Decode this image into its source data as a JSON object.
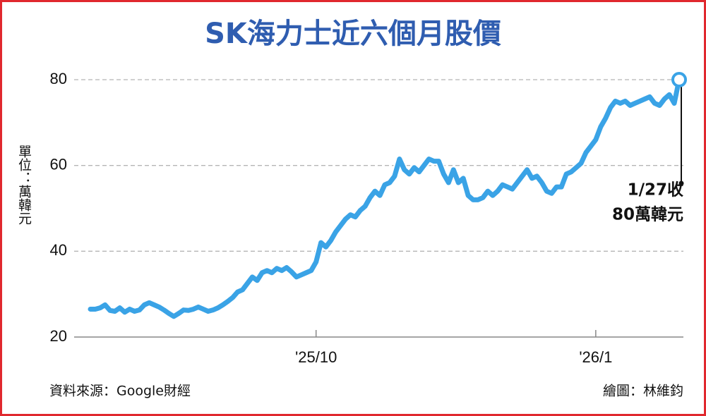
{
  "chart_data": {
    "type": "line",
    "title": "SK海力士近六個月股價",
    "y_label": "單位：萬韓元",
    "annotation": [
      "1/27收",
      "80萬韓元"
    ],
    "source": "資料來源：Google財經",
    "credit": "繪圖：林維鈞",
    "categories": [
      null,
      null,
      null,
      null,
      null,
      null,
      null,
      null,
      null,
      null,
      null,
      null,
      null,
      null,
      null,
      null,
      null,
      null,
      null,
      null,
      null,
      null,
      null,
      null,
      null,
      null,
      null,
      null,
      null,
      null,
      null,
      null,
      null,
      null,
      null,
      null,
      null,
      null,
      null,
      null,
      null,
      null,
      null,
      null,
      null,
      null,
      "'25/10",
      null,
      null,
      null,
      null,
      null,
      null,
      null,
      null,
      null,
      null,
      null,
      null,
      null,
      null,
      null,
      null,
      null,
      null,
      null,
      null,
      null,
      null,
      null,
      null,
      null,
      null,
      null,
      null,
      null,
      null,
      null,
      null,
      null,
      null,
      null,
      null,
      null,
      null,
      null,
      null,
      null,
      null,
      null,
      null,
      null,
      null,
      null,
      null,
      null,
      null,
      null,
      null,
      null,
      null,
      null,
      null,
      "'26/1",
      null,
      null,
      null,
      null,
      null,
      null,
      null,
      null,
      null,
      null,
      null,
      null,
      null,
      null,
      null,
      null,
      null
    ],
    "values": [
      26.5,
      26.5,
      26.8,
      27.5,
      26.2,
      26.0,
      26.8,
      25.8,
      26.5,
      26.0,
      26.3,
      27.5,
      28.0,
      27.5,
      27.0,
      26.3,
      25.5,
      24.8,
      25.5,
      26.3,
      26.2,
      26.5,
      27.0,
      26.5,
      26.0,
      26.3,
      26.8,
      27.5,
      28.3,
      29.2,
      30.5,
      31.0,
      32.5,
      34.0,
      33.2,
      35.0,
      35.5,
      35.0,
      36.0,
      35.5,
      36.2,
      35.2,
      34.0,
      34.5,
      35.0,
      35.5,
      37.5,
      42.0,
      41.0,
      42.5,
      44.5,
      46.0,
      47.5,
      48.5,
      48.0,
      49.5,
      50.5,
      52.5,
      54.0,
      53.0,
      55.5,
      56.0,
      57.5,
      61.5,
      59.0,
      58.0,
      59.5,
      58.5,
      60.0,
      61.5,
      61.0,
      61.0,
      58.0,
      56.0,
      59.0,
      56.0,
      57.0,
      53.0,
      52.0,
      52.0,
      52.5,
      54.0,
      53.0,
      54.0,
      55.5,
      55.0,
      54.5,
      56.0,
      57.5,
      59.0,
      57.0,
      57.5,
      56.0,
      54.0,
      53.5,
      55.0,
      55.0,
      58.0,
      58.5,
      59.5,
      60.5,
      63.0,
      64.5,
      66.0,
      69.0,
      71.0,
      73.5,
      75.0,
      74.5,
      75.0,
      74.0,
      74.5,
      75.0,
      75.5,
      76.0,
      74.5,
      74.0,
      75.5,
      76.5,
      74.5,
      80.0
    ],
    "color": "#3aa3e6",
    "ylim": [
      20,
      80
    ],
    "yticks": [
      20,
      40,
      60,
      80
    ],
    "grid": true
  }
}
